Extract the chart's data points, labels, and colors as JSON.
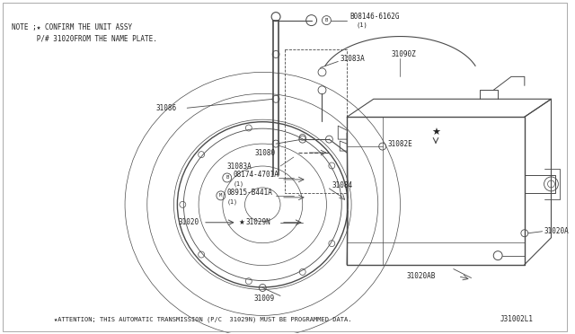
{
  "bg_color": "#ffffff",
  "line_color": "#4a4a4a",
  "text_color": "#222222",
  "fig_width": 6.4,
  "fig_height": 3.72,
  "note_line1": "NOTE ;★ CONFIRM THE UNIT ASSY",
  "note_line2": "      P/# 31020FROM THE NAME PLATE.",
  "bottom_note": "★ATTENTION; THIS AUTOMATIC TRANSMISSION (P/C  31029N) MUST BE PROGRAMMED DATA.",
  "diagram_id": "J31002L1"
}
